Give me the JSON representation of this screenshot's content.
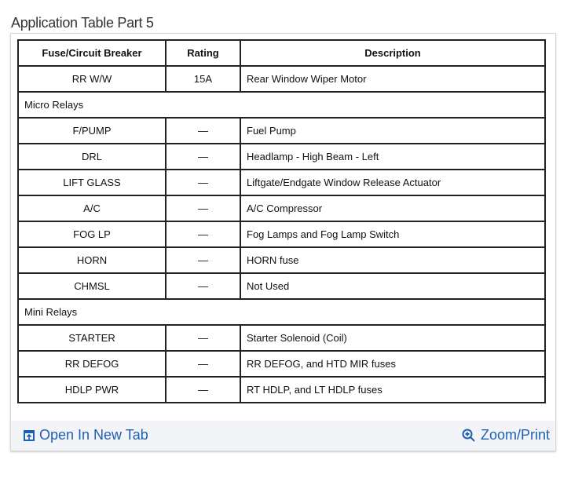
{
  "title": "Application Table Part 5",
  "table": {
    "headers": [
      "Fuse/Circuit Breaker",
      "Rating",
      "Description"
    ],
    "rows": [
      {
        "cells": [
          "RR W/W",
          "15A",
          "Rear Window Wiper Motor"
        ]
      },
      {
        "section": "Micro Relays"
      },
      {
        "cells": [
          "F/PUMP",
          "—",
          "Fuel Pump"
        ]
      },
      {
        "cells": [
          "DRL",
          "—",
          "Headlamp - High Beam - Left"
        ]
      },
      {
        "cells": [
          "LIFT GLASS",
          "—",
          "Liftgate/Endgate Window Release Actuator"
        ]
      },
      {
        "cells": [
          "A/C",
          "—",
          "A/C Compressor"
        ]
      },
      {
        "cells": [
          "FOG LP",
          "—",
          "Fog Lamps and Fog Lamp Switch"
        ]
      },
      {
        "cells": [
          "HORN",
          "—",
          "HORN fuse"
        ]
      },
      {
        "cells": [
          "CHMSL",
          "—",
          "Not Used"
        ]
      },
      {
        "section": "Mini Relays"
      },
      {
        "cells": [
          "STARTER",
          "—",
          "Starter Solenoid (Coil)"
        ]
      },
      {
        "cells": [
          "RR DEFOG",
          "—",
          "RR DEFOG, and HTD MIR fuses"
        ]
      },
      {
        "cells": [
          "HDLP PWR",
          "—",
          "RT HDLP, and LT HDLP fuses"
        ]
      }
    ]
  },
  "footer": {
    "open_label": "Open In New Tab",
    "open_icon": "open-new-tab-icon",
    "zoom_label": "Zoom/Print",
    "zoom_icon": "zoom-in-icon"
  },
  "colors": {
    "link": "#1f5fb3",
    "footer_bg": "#f2f4f8"
  }
}
